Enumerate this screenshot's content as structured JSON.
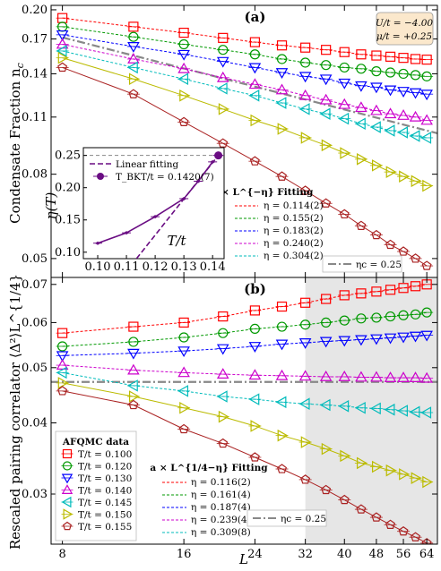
{
  "chart_data": [
    {
      "type": "scatter",
      "panel_label": "(a)",
      "xlabel": "L",
      "ylabel": "Condensate Fraction n",
      "ylabel_sub": "c",
      "xscale": "log",
      "yscale": "log",
      "xlim": [
        7.5,
        68
      ],
      "ylim": [
        0.045,
        0.205
      ],
      "xticks": [
        "8",
        "16",
        "24",
        "32",
        "40",
        "48",
        "56",
        "64"
      ],
      "yticks": [
        {
          "v": 0.05,
          "label": "0.05"
        },
        {
          "v": 0.08,
          "label": "0.08"
        },
        {
          "v": 0.11,
          "label": "0.11"
        },
        {
          "v": 0.14,
          "label": "0.14"
        },
        {
          "v": 0.17,
          "label": "0.17"
        },
        {
          "v": 0.2,
          "label": "0.20"
        }
      ],
      "params_box": [
        "U/t = −4.00",
        "μ/t = +0.25"
      ],
      "x": [
        8,
        12,
        16,
        20,
        24,
        28,
        32,
        36,
        40,
        44,
        48,
        52,
        56,
        60,
        64
      ],
      "series": [
        {
          "T": 0.1,
          "color": "#ff0000",
          "marker": "square",
          "values": [
            0.191,
            0.182,
            0.176,
            0.171,
            0.167,
            0.164,
            0.162,
            0.16,
            0.158,
            0.156,
            0.155,
            0.154,
            0.153,
            0.152,
            0.1515
          ]
        },
        {
          "T": 0.12,
          "color": "#009900",
          "marker": "circle",
          "values": [
            0.182,
            0.172,
            0.165,
            0.16,
            0.156,
            0.152,
            0.149,
            0.147,
            0.145,
            0.144,
            0.142,
            0.141,
            0.14,
            0.139,
            0.138
          ]
        },
        {
          "T": 0.13,
          "color": "#0000ff",
          "marker": "tri-down",
          "values": [
            0.174,
            0.163,
            0.156,
            0.15,
            0.145,
            0.141,
            0.138,
            0.136,
            0.133,
            0.131,
            0.13,
            0.128,
            0.127,
            0.126,
            0.125
          ]
        },
        {
          "T": 0.14,
          "color": "#cc00cc",
          "marker": "tri-up",
          "values": [
            0.165,
            0.152,
            0.144,
            0.137,
            0.132,
            0.128,
            0.124,
            0.121,
            0.118,
            0.116,
            0.114,
            0.112,
            0.111,
            0.11,
            0.108
          ]
        },
        {
          "T": 0.145,
          "color": "#00bbbb",
          "marker": "tri-left",
          "values": [
            0.159,
            0.145,
            0.136,
            0.129,
            0.124,
            0.119,
            0.115,
            0.112,
            0.109,
            0.106,
            0.104,
            0.102,
            0.101,
            0.099,
            0.098
          ]
        },
        {
          "T": 0.15,
          "color": "#bbbb00",
          "marker": "tri-right",
          "values": [
            0.153,
            0.136,
            0.124,
            0.115,
            0.108,
            0.103,
            0.098,
            0.094,
            0.09,
            0.087,
            0.084,
            0.081,
            0.079,
            0.077,
            0.075
          ]
        },
        {
          "T": 0.155,
          "color": "#aa2222",
          "marker": "pentagon",
          "values": [
            0.145,
            0.125,
            0.107,
            0.095,
            0.086,
            0.079,
            0.073,
            0.068,
            0.064,
            0.06,
            0.057,
            0.054,
            0.052,
            0.05,
            0.048
          ]
        }
      ],
      "fit_legend_title": "a × L^{−η} Fitting",
      "fits": [
        {
          "label": "η = 0.114(2)",
          "color": "#ff0000"
        },
        {
          "label": "η = 0.155(2)",
          "color": "#009900"
        },
        {
          "label": "η = 0.183(2)",
          "color": "#0000ff"
        },
        {
          "label": "η = 0.240(2)",
          "color": "#cc00cc"
        },
        {
          "label": "η = 0.304(2)",
          "color": "#00bbbb"
        }
      ],
      "eta_c_label": "ηc = 0.25",
      "eta_c_line": {
        "from": [
          8,
          0.1715
        ],
        "to": [
          68,
          0.1005
        ]
      },
      "inset": {
        "xlabel": "T/t",
        "ylabel": "η(T)",
        "xlim": [
          0.095,
          0.144
        ],
        "ylim": [
          0.09,
          0.262
        ],
        "xticks": [
          "0.10",
          "0.11",
          "0.12",
          "0.13",
          "0.14"
        ],
        "yticks": [
          "0.10",
          "0.15",
          "0.20",
          "0.25"
        ],
        "T": [
          0.1,
          0.11,
          0.12,
          0.13,
          0.135,
          0.14
        ],
        "eta": [
          0.114,
          0.13,
          0.155,
          0.183,
          0.21,
          0.24
        ],
        "bkt_point": {
          "T": 0.142,
          "eta": 0.25
        },
        "linear_fit": {
          "from": [
            0.1135,
            0.09
          ],
          "to": [
            0.142,
            0.25
          ]
        },
        "legend_linear": "Linear fitting",
        "legend_bkt": "T_BKT/t = 0.1420(7)"
      }
    },
    {
      "type": "scatter",
      "panel_label": "(b)",
      "xlabel": "L",
      "ylabel": "Rescaled pairing correlator ⟨Δ²⟩L^{1/4}",
      "xscale": "log",
      "yscale": "log",
      "xlim": [
        7.5,
        68
      ],
      "ylim": [
        0.0245,
        0.072
      ],
      "xticks": [
        "8",
        "16",
        "24",
        "32",
        "40",
        "48",
        "56",
        "64"
      ],
      "yticks": [
        {
          "v": 0.03,
          "label": "0.03"
        },
        {
          "v": 0.04,
          "label": "0.04"
        },
        {
          "v": 0.05,
          "label": "0.05"
        },
        {
          "v": 0.06,
          "label": "0.06"
        },
        {
          "v": 0.07,
          "label": "0.07"
        }
      ],
      "shaded_region": [
        32,
        68
      ],
      "x": [
        8,
        12,
        16,
        20,
        24,
        28,
        32,
        36,
        40,
        44,
        48,
        52,
        56,
        60,
        64
      ],
      "series": [
        {
          "T": 0.1,
          "color": "#ff0000",
          "marker": "square",
          "values": [
            0.0575,
            0.059,
            0.06,
            0.0615,
            0.063,
            0.064,
            0.065,
            0.066,
            0.067,
            0.0675,
            0.068,
            0.0685,
            0.069,
            0.0695,
            0.07
          ]
        },
        {
          "T": 0.12,
          "color": "#009900",
          "marker": "circle",
          "values": [
            0.0545,
            0.0555,
            0.0565,
            0.0575,
            0.0585,
            0.059,
            0.0595,
            0.06,
            0.0605,
            0.061,
            0.0612,
            0.0615,
            0.0618,
            0.062,
            0.0625
          ]
        },
        {
          "T": 0.13,
          "color": "#0000ff",
          "marker": "tri-down",
          "values": [
            0.0525,
            0.053,
            0.0535,
            0.054,
            0.0545,
            0.055,
            0.0553,
            0.0556,
            0.0558,
            0.056,
            0.0562,
            0.0564,
            0.0566,
            0.0568,
            0.057
          ]
        },
        {
          "T": 0.14,
          "color": "#cc00cc",
          "marker": "tri-up",
          "values": [
            0.0505,
            0.0495,
            0.049,
            0.0487,
            0.0485,
            0.0484,
            0.0483,
            0.0482,
            0.0482,
            0.0481,
            0.0481,
            0.048,
            0.048,
            0.048,
            0.0479
          ]
        },
        {
          "T": 0.145,
          "color": "#00bbbb",
          "marker": "tri-left",
          "values": [
            0.049,
            0.0465,
            0.0455,
            0.0445,
            0.044,
            0.0435,
            0.0432,
            0.043,
            0.0428,
            0.0425,
            0.0424,
            0.0422,
            0.042,
            0.0418,
            0.0417
          ]
        },
        {
          "T": 0.15,
          "color": "#bbbb00",
          "marker": "tri-right",
          "values": [
            0.047,
            0.0445,
            0.0425,
            0.041,
            0.0395,
            0.038,
            0.037,
            0.036,
            0.035,
            0.034,
            0.0335,
            0.033,
            0.0325,
            0.032,
            0.0315
          ]
        },
        {
          "T": 0.155,
          "color": "#aa2222",
          "marker": "pentagon",
          "values": [
            0.0455,
            0.043,
            0.039,
            0.0368,
            0.0348,
            0.0332,
            0.0318,
            0.0305,
            0.0293,
            0.0282,
            0.0273,
            0.0265,
            0.0258,
            0.0252,
            0.0246
          ]
        }
      ],
      "data_legend_title": "AFQMC data",
      "data_legend": [
        "T/t = 0.100",
        "T/t = 0.120",
        "T/t = 0.130",
        "T/t = 0.140",
        "T/t = 0.145",
        "T/t = 0.150",
        "T/t = 0.155"
      ],
      "fit_legend_title": "a × L^{1/4−η} Fitting",
      "fits": [
        {
          "label": "η = 0.116(2)",
          "color": "#ff0000"
        },
        {
          "label": "η = 0.161(4)",
          "color": "#009900"
        },
        {
          "label": "η = 0.187(4)",
          "color": "#0000ff"
        },
        {
          "label": "η = 0.239(4)",
          "color": "#cc00cc"
        },
        {
          "label": "η = 0.309(8)",
          "color": "#00bbbb"
        }
      ],
      "eta_c_label": "ηc = 0.25",
      "eta_c_line": {
        "from": [
          7.5,
          0.0472
        ],
        "to": [
          68,
          0.0472
        ]
      }
    }
  ]
}
